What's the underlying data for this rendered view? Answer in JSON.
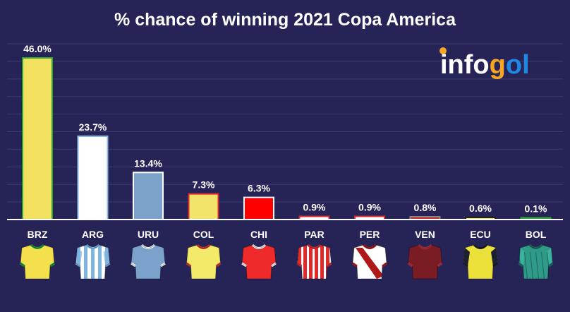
{
  "chart_data": {
    "type": "bar",
    "title": "% chance of winning 2021 Copa America",
    "categories": [
      "BRZ",
      "ARG",
      "URU",
      "COL",
      "CHI",
      "PAR",
      "PER",
      "VEN",
      "ECU",
      "BOL"
    ],
    "values": [
      46.0,
      23.7,
      13.4,
      7.3,
      6.3,
      0.9,
      0.9,
      0.8,
      0.6,
      0.1
    ],
    "value_labels": [
      "46.0%",
      "23.7%",
      "13.4%",
      "7.3%",
      "6.3%",
      "0.9%",
      "0.9%",
      "0.8%",
      "0.6%",
      "0.1%"
    ],
    "ylim": [
      0,
      46
    ],
    "grid": true,
    "bar_fills": [
      "#f2e15e",
      "#ffffff",
      "#7ca2c9",
      "#f2e46a",
      "#ff0000",
      "#ffffff",
      "#ffffff",
      "#c62828",
      "#f4ea3c",
      "#2a9a8a"
    ],
    "bar_strokes": [
      "#2aa82a",
      "#8fb8e0",
      "#ffffff",
      "#e02a2a",
      "#ffffff",
      "#e02a2a",
      "#e02a2a",
      "#888888",
      "#222222",
      "#2aa82a"
    ],
    "shirts": [
      {
        "icon": "brazil-shirt-icon",
        "body": "#f4e04d",
        "sleeve": "#f4e04d",
        "trim": "#1f9e3a",
        "pattern": "none"
      },
      {
        "icon": "argentina-shirt-icon",
        "body": "#ffffff",
        "sleeve": "#a9cdec",
        "trim": "#7fb3e0",
        "pattern": "vstripes"
      },
      {
        "icon": "uruguay-shirt-icon",
        "body": "#7ba2ca",
        "sleeve": "#7ba2ca",
        "trim": "#ffffff",
        "pattern": "none"
      },
      {
        "icon": "colombia-shirt-icon",
        "body": "#f4ea6a",
        "sleeve": "#f4ea6a",
        "trim": "#d63a2a",
        "pattern": "none"
      },
      {
        "icon": "chile-shirt-icon",
        "body": "#ee2a2a",
        "sleeve": "#ee2a2a",
        "trim": "#ffffff",
        "pattern": "none"
      },
      {
        "icon": "paraguay-shirt-icon",
        "body": "#ffffff",
        "sleeve": "#ffffff",
        "trim": "#e02a2a",
        "pattern": "redstripes"
      },
      {
        "icon": "peru-shirt-icon",
        "body": "#ffffff",
        "sleeve": "#ffffff",
        "trim": "#b01818",
        "pattern": "sash"
      },
      {
        "icon": "venezuela-shirt-icon",
        "body": "#7a1c24",
        "sleeve": "#7a1c24",
        "trim": "#b03040",
        "pattern": "none"
      },
      {
        "icon": "ecuador-shirt-icon",
        "body": "#ece03a",
        "sleeve": "#1c2030",
        "trim": "#1c2030",
        "pattern": "none"
      },
      {
        "icon": "bolivia-shirt-icon",
        "body": "#2f9a88",
        "sleeve": "#3ab39e",
        "trim": "#1f6f62",
        "pattern": "diamond"
      }
    ]
  },
  "logo": {
    "text_a": "info",
    "text_g": "g",
    "text_b": "ol"
  },
  "colors": {
    "background": "#262457",
    "grid": "#3a3870",
    "axis": "#ffffff",
    "logo_blue": "#1e88e5",
    "logo_orange": "#f6a623"
  }
}
